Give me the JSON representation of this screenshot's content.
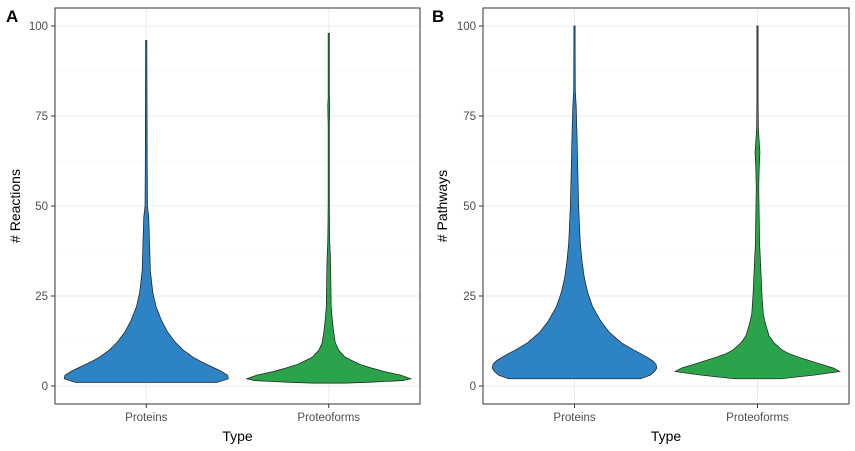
{
  "chart_data": [
    {
      "type": "violin",
      "panel_tag": "A",
      "xlabel": "Type",
      "ylabel": "# Reactions",
      "categories": [
        "Proteins",
        "Proteoforms"
      ],
      "ylim": [
        -5,
        105
      ],
      "yticks": [
        0,
        25,
        50,
        75,
        100
      ],
      "grid": true,
      "colors": {
        "Proteins": "#2e83c4",
        "Proteoforms": "#2aa34a"
      },
      "series": [
        {
          "category": "Proteins",
          "max": 96,
          "density": [
            [
              1,
              0.86
            ],
            [
              2,
              1.0
            ],
            [
              3,
              0.99
            ],
            [
              4,
              0.92
            ],
            [
              5,
              0.83
            ],
            [
              6,
              0.74
            ],
            [
              7,
              0.65
            ],
            [
              8,
              0.57
            ],
            [
              10,
              0.45
            ],
            [
              12,
              0.36
            ],
            [
              15,
              0.26
            ],
            [
              18,
              0.19
            ],
            [
              22,
              0.12
            ],
            [
              26,
              0.08
            ],
            [
              32,
              0.05
            ],
            [
              40,
              0.04
            ],
            [
              47,
              0.03
            ],
            [
              50,
              0.015
            ],
            [
              60,
              0.012
            ],
            [
              75,
              0.01
            ],
            [
              90,
              0.008
            ],
            [
              96,
              0.005
            ]
          ]
        },
        {
          "category": "Proteoforms",
          "max": 98,
          "density": [
            [
              0.8,
              0.2
            ],
            [
              1,
              0.46
            ],
            [
              1.5,
              0.9
            ],
            [
              2,
              1.0
            ],
            [
              3,
              0.88
            ],
            [
              4,
              0.68
            ],
            [
              5,
              0.52
            ],
            [
              6,
              0.38
            ],
            [
              7,
              0.29
            ],
            [
              8,
              0.2
            ],
            [
              10,
              0.12
            ],
            [
              12,
              0.08
            ],
            [
              15,
              0.06
            ],
            [
              18,
              0.045
            ],
            [
              22,
              0.03
            ],
            [
              30,
              0.025
            ],
            [
              36,
              0.02
            ],
            [
              40,
              0.012
            ],
            [
              44,
              0.01
            ],
            [
              50,
              0.006
            ],
            [
              73,
              0.006
            ],
            [
              75,
              0.01
            ],
            [
              78,
              0.012
            ],
            [
              80,
              0.006
            ],
            [
              90,
              0.005
            ],
            [
              98,
              0.004
            ]
          ]
        }
      ]
    },
    {
      "type": "violin",
      "panel_tag": "B",
      "xlabel": "Type",
      "ylabel": "# Pathways",
      "categories": [
        "Proteins",
        "Proteoforms"
      ],
      "ylim": [
        -5,
        105
      ],
      "yticks": [
        0,
        25,
        50,
        75,
        100
      ],
      "grid": true,
      "colors": {
        "Proteins": "#2e83c4",
        "Proteoforms": "#2aa34a"
      },
      "series": [
        {
          "category": "Proteins",
          "max": 100,
          "density": [
            [
              2,
              0.8
            ],
            [
              3,
              0.92
            ],
            [
              4,
              0.97
            ],
            [
              5,
              1.0
            ],
            [
              6,
              0.99
            ],
            [
              7,
              0.95
            ],
            [
              8,
              0.88
            ],
            [
              9,
              0.8
            ],
            [
              10,
              0.72
            ],
            [
              12,
              0.57
            ],
            [
              15,
              0.42
            ],
            [
              18,
              0.32
            ],
            [
              22,
              0.22
            ],
            [
              26,
              0.16
            ],
            [
              30,
              0.12
            ],
            [
              35,
              0.09
            ],
            [
              40,
              0.07
            ],
            [
              50,
              0.05
            ],
            [
              60,
              0.04
            ],
            [
              70,
              0.03
            ],
            [
              78,
              0.02
            ],
            [
              82,
              0.01
            ],
            [
              90,
              0.008
            ],
            [
              100,
              0.005
            ]
          ]
        },
        {
          "category": "Proteoforms",
          "max": 100,
          "density": [
            [
              2,
              0.28
            ],
            [
              3,
              0.68
            ],
            [
              4,
              1.0
            ],
            [
              5,
              0.92
            ],
            [
              6,
              0.78
            ],
            [
              7,
              0.64
            ],
            [
              8,
              0.5
            ],
            [
              9,
              0.38
            ],
            [
              10,
              0.3
            ],
            [
              12,
              0.2
            ],
            [
              14,
              0.14
            ],
            [
              17,
              0.1
            ],
            [
              20,
              0.07
            ],
            [
              25,
              0.055
            ],
            [
              30,
              0.045
            ],
            [
              35,
              0.035
            ],
            [
              40,
              0.025
            ],
            [
              48,
              0.02
            ],
            [
              55,
              0.015
            ],
            [
              60,
              0.02
            ],
            [
              65,
              0.03
            ],
            [
              68,
              0.02
            ],
            [
              72,
              0.01
            ],
            [
              80,
              0.006
            ],
            [
              90,
              0.005
            ],
            [
              100,
              0.004
            ]
          ]
        }
      ]
    }
  ]
}
